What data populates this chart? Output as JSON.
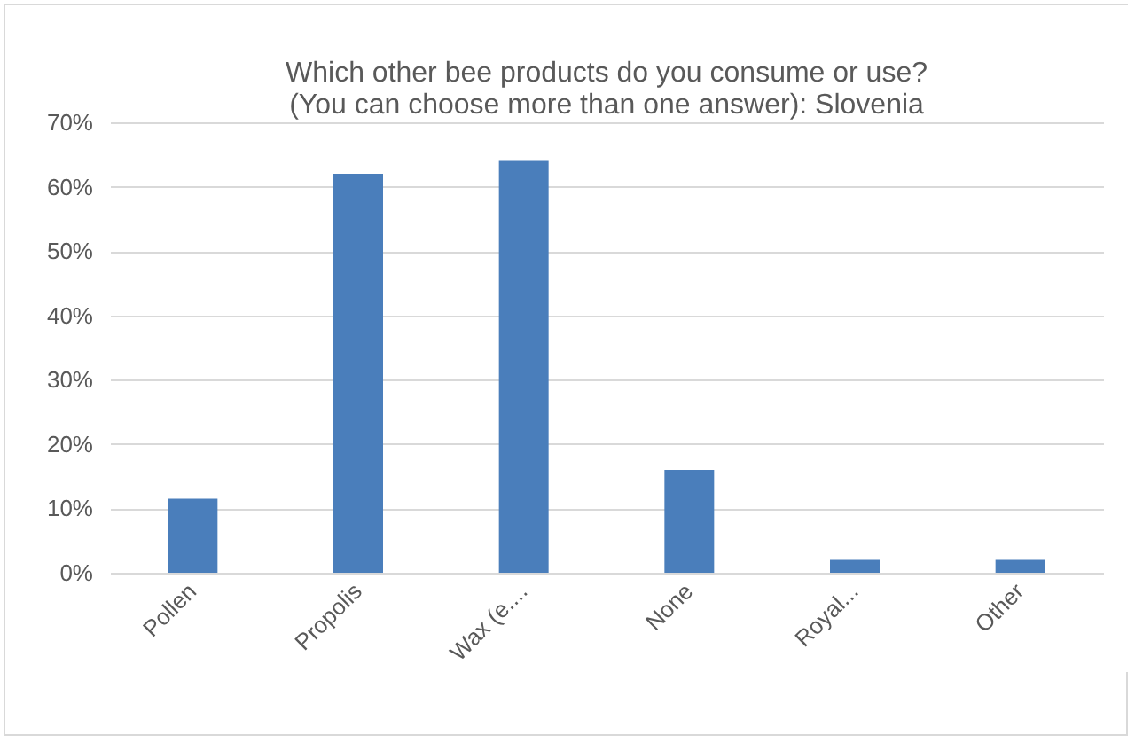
{
  "chart_data": {
    "type": "bar",
    "title": [
      "Which other bee products do you consume or use?",
      "(You can choose more than one answer): Slovenia"
    ],
    "categories": [
      "Pollen",
      "Propolis",
      "Wax (e....",
      "None",
      "Royal...",
      "Other"
    ],
    "values": [
      11.5,
      62,
      64,
      16,
      2,
      2
    ],
    "color": "#4a7ebb",
    "ylim": [
      0,
      70
    ],
    "yticks": [
      {
        "value": 0,
        "label": "0%"
      },
      {
        "value": 10,
        "label": "10%"
      },
      {
        "value": 20,
        "label": "20%"
      },
      {
        "value": 30,
        "label": "30%"
      },
      {
        "value": 40,
        "label": "40%"
      },
      {
        "value": 50,
        "label": "50%"
      },
      {
        "value": 60,
        "label": "60%"
      },
      {
        "value": 70,
        "label": "70%"
      }
    ],
    "grid": "y"
  }
}
